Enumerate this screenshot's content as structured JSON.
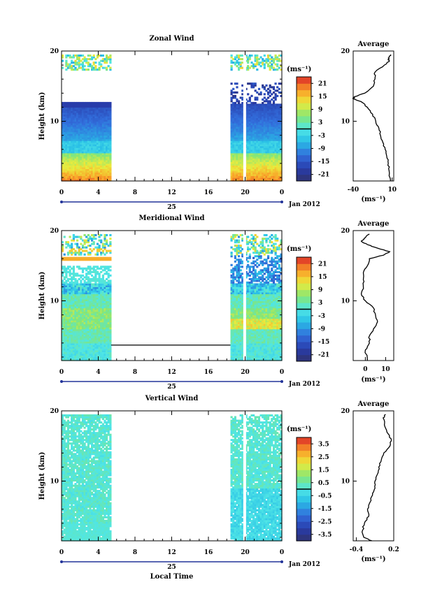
{
  "chart_data": [
    {
      "type": "heatmap",
      "title": "Zonal Wind",
      "ylabel": "Height (km)",
      "xlabel": "",
      "y_ticks": [
        "10",
        "20"
      ],
      "x_ticks": [
        "0",
        "4",
        "8",
        "12",
        "16",
        "20",
        "0"
      ],
      "xlim_hours": [
        0,
        24
      ],
      "ylim_km": [
        1.5,
        20
      ],
      "date_axis": {
        "day_label": "25",
        "month_label": "Jan 2012"
      },
      "colorbar": {
        "unit": "(ms⁻¹)",
        "ticks": [
          "21",
          "15",
          "9",
          "3",
          "-3",
          "-9",
          "-15",
          "-21"
        ],
        "range": [
          -24,
          24
        ]
      },
      "data_coverage_hours": [
        [
          0,
          5.4
        ],
        [
          18.4,
          24
        ]
      ],
      "avg_profile": {
        "title": "Average",
        "x_ticks": [
          "-40",
          "10"
        ],
        "xlim": [
          -40,
          12
        ],
        "xlabel": "(ms⁻¹)",
        "height_km": [
          1.5,
          3,
          4,
          5,
          6,
          7,
          8,
          9,
          10,
          11,
          12,
          12.8,
          13.2,
          13.5,
          14,
          15,
          16,
          17,
          18,
          18.5,
          19,
          19.5
        ],
        "values": [
          8,
          6,
          5,
          3,
          1,
          -2,
          -5,
          -7,
          -11,
          -15,
          -22,
          -30,
          -40,
          -38,
          -25,
          -14,
          -12,
          -12,
          0,
          6,
          5,
          8
        ]
      }
    },
    {
      "type": "heatmap",
      "title": "Meridional Wind",
      "ylabel": "Height (km)",
      "xlabel": "",
      "y_ticks": [
        "10",
        "20"
      ],
      "x_ticks": [
        "0",
        "4",
        "8",
        "12",
        "16",
        "20",
        "0"
      ],
      "xlim_hours": [
        0,
        24
      ],
      "ylim_km": [
        1.5,
        20
      ],
      "date_axis": {
        "day_label": "25",
        "month_label": "Jan 2012"
      },
      "colorbar": {
        "unit": "(ms⁻¹)",
        "ticks": [
          "21",
          "15",
          "9",
          "3",
          "-3",
          "-9",
          "-15",
          "-21"
        ],
        "range": [
          -24,
          24
        ]
      },
      "data_coverage_hours": [
        [
          0,
          5.4
        ],
        [
          18.4,
          24
        ]
      ],
      "avg_profile": {
        "title": "Average",
        "x_ticks": [
          "0",
          "10"
        ],
        "xlim": [
          -6,
          14
        ],
        "xlabel": "(ms⁻¹)",
        "height_km": [
          1.5,
          3,
          4,
          5,
          6,
          7,
          8,
          9,
          10,
          11,
          12,
          13,
          14,
          15,
          16,
          16.5,
          17,
          17.5,
          18,
          18.5,
          19,
          19.5
        ],
        "values": [
          1,
          0,
          2,
          2,
          4,
          6,
          5,
          4,
          0,
          -2,
          -1,
          -1,
          -1,
          1,
          2,
          9,
          12,
          6,
          1,
          -2,
          0,
          2
        ]
      }
    },
    {
      "type": "heatmap",
      "title": "Vertical Wind",
      "ylabel": "Height (km)",
      "xlabel": "Local Time",
      "y_ticks": [
        "10",
        "20"
      ],
      "x_ticks": [
        "0",
        "4",
        "8",
        "12",
        "16",
        "20",
        "0"
      ],
      "xlim_hours": [
        0,
        24
      ],
      "ylim_km": [
        1.5,
        20
      ],
      "date_axis": {
        "day_label": "25",
        "month_label": "Jan 2012"
      },
      "colorbar": {
        "unit": "(ms⁻¹)",
        "ticks": [
          "3.5",
          "2.5",
          "1.5",
          "0.5",
          "-0.5",
          "-1.5",
          "-2.5",
          "-3.5"
        ],
        "range": [
          -4,
          4
        ]
      },
      "data_coverage_hours": [
        [
          0,
          5.4
        ],
        [
          18.4,
          24
        ]
      ],
      "avg_profile": {
        "title": "Average",
        "x_ticks": [
          "-0.4",
          "0.2"
        ],
        "xlim": [
          -0.45,
          0.2
        ],
        "xlabel": "(ms⁻¹)",
        "height_km": [
          1.5,
          2,
          3,
          4,
          5,
          6,
          7,
          8,
          9,
          10,
          11,
          12,
          13,
          14,
          15,
          16,
          17,
          18,
          19,
          19.5
        ],
        "values": [
          -0.15,
          -0.28,
          -0.3,
          -0.27,
          -0.2,
          -0.22,
          -0.18,
          -0.14,
          -0.1,
          -0.1,
          -0.06,
          -0.04,
          0.0,
          0.04,
          0.14,
          0.16,
          0.09,
          0.05,
          0.03,
          0.07
        ]
      }
    }
  ]
}
